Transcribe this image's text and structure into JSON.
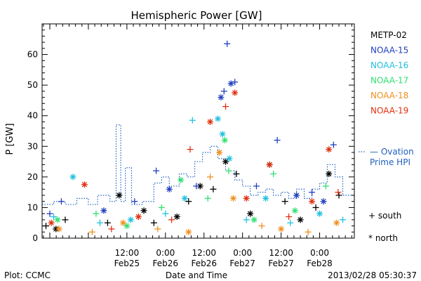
{
  "chart_data": {
    "type": "scatter",
    "title": "Hemispheric Power [GW]",
    "ylabel": "P [GW]",
    "xlabel": "Date and Time",
    "ylim": [
      0,
      70
    ],
    "yticks": [
      0,
      10,
      20,
      30,
      40,
      50,
      60
    ],
    "xlim": [
      -0.6,
      3.45
    ],
    "xticks": [
      {
        "x": 0.5,
        "time": "12:00",
        "date": "Feb25"
      },
      {
        "x": 1.0,
        "time": "0:00",
        "date": "Feb26"
      },
      {
        "x": 1.5,
        "time": "12:00",
        "date": "Feb26"
      },
      {
        "x": 2.0,
        "time": "0:00",
        "date": "Feb27"
      },
      {
        "x": 2.5,
        "time": "12:00",
        "date": "Feb27"
      },
      {
        "x": 3.0,
        "time": "0:00",
        "date": "Feb28"
      }
    ],
    "x_unit": "days from 2013-02-25 00:00 UT",
    "legend_placement": "right",
    "marker_legend": {
      "south": "+ south",
      "north": "* north"
    },
    "series": [
      {
        "name": "METP-02",
        "color": "#000000",
        "points": [
          {
            "x": -0.55,
            "y": 4,
            "m": "+"
          },
          {
            "x": -0.42,
            "y": 3,
            "m": "*"
          },
          {
            "x": -0.3,
            "y": 6,
            "m": "+"
          },
          {
            "x": 0.4,
            "y": 14,
            "m": "*"
          },
          {
            "x": 0.25,
            "y": 5,
            "m": "+"
          },
          {
            "x": 0.72,
            "y": 9,
            "m": "*"
          },
          {
            "x": 0.85,
            "y": 5,
            "m": "+"
          },
          {
            "x": 1.15,
            "y": 7,
            "m": "*"
          },
          {
            "x": 1.3,
            "y": 12,
            "m": "+"
          },
          {
            "x": 1.45,
            "y": 17,
            "m": "*"
          },
          {
            "x": 1.62,
            "y": 16,
            "m": "+"
          },
          {
            "x": 1.78,
            "y": 25,
            "m": "*"
          },
          {
            "x": 1.92,
            "y": 21,
            "m": "+"
          },
          {
            "x": 2.1,
            "y": 8,
            "m": "*"
          },
          {
            "x": 2.35,
            "y": 24,
            "m": "*"
          },
          {
            "x": 2.55,
            "y": 12,
            "m": "+"
          },
          {
            "x": 2.75,
            "y": 6,
            "m": "*"
          },
          {
            "x": 2.95,
            "y": 10,
            "m": "+"
          },
          {
            "x": 3.12,
            "y": 21,
            "m": "*"
          },
          {
            "x": 3.25,
            "y": 14,
            "m": "+"
          }
        ]
      },
      {
        "name": "NOAA-15",
        "color": "#1f3fbf",
        "points": [
          {
            "x": -0.5,
            "y": 8,
            "m": "+"
          },
          {
            "x": -0.35,
            "y": 12,
            "m": "+"
          },
          {
            "x": 0.2,
            "y": 9,
            "m": "*"
          },
          {
            "x": 0.6,
            "y": 12,
            "m": "+"
          },
          {
            "x": 0.88,
            "y": 22,
            "m": "+"
          },
          {
            "x": 1.05,
            "y": 16,
            "m": "*"
          },
          {
            "x": 1.4,
            "y": 17,
            "m": "+"
          },
          {
            "x": 1.72,
            "y": 46,
            "m": "*"
          },
          {
            "x": 1.76,
            "y": 48,
            "m": "+"
          },
          {
            "x": 1.8,
            "y": 63.5,
            "m": "+"
          },
          {
            "x": 1.85,
            "y": 50.5,
            "m": "*"
          },
          {
            "x": 1.9,
            "y": 51,
            "m": "+"
          },
          {
            "x": 2.18,
            "y": 17,
            "m": "+"
          },
          {
            "x": 2.45,
            "y": 32,
            "m": "+"
          },
          {
            "x": 2.7,
            "y": 14,
            "m": "*"
          },
          {
            "x": 2.9,
            "y": 15,
            "m": "+"
          },
          {
            "x": 3.05,
            "y": 12,
            "m": "*"
          },
          {
            "x": 3.18,
            "y": 30.5,
            "m": "+"
          }
        ]
      },
      {
        "name": "NOAA-16",
        "color": "#20c0e0",
        "points": [
          {
            "x": -0.45,
            "y": 7,
            "m": "+"
          },
          {
            "x": -0.2,
            "y": 20,
            "m": "*"
          },
          {
            "x": 0.15,
            "y": 5,
            "m": "+"
          },
          {
            "x": 0.55,
            "y": 6,
            "m": "*"
          },
          {
            "x": 1.0,
            "y": 8,
            "m": "+"
          },
          {
            "x": 1.25,
            "y": 13,
            "m": "*"
          },
          {
            "x": 1.35,
            "y": 38.5,
            "m": "+"
          },
          {
            "x": 1.68,
            "y": 39,
            "m": "*"
          },
          {
            "x": 1.74,
            "y": 34,
            "m": "*"
          },
          {
            "x": 1.83,
            "y": 26,
            "m": "*"
          },
          {
            "x": 2.05,
            "y": 6,
            "m": "+"
          },
          {
            "x": 2.3,
            "y": 13,
            "m": "*"
          },
          {
            "x": 2.62,
            "y": 5,
            "m": "+"
          },
          {
            "x": 3.0,
            "y": 8,
            "m": "*"
          },
          {
            "x": 3.3,
            "y": 6,
            "m": "+"
          }
        ]
      },
      {
        "name": "NOAA-17",
        "color": "#30e070",
        "points": [
          {
            "x": -0.4,
            "y": 6,
            "m": "*"
          },
          {
            "x": 0.1,
            "y": 8,
            "m": "+"
          },
          {
            "x": 0.5,
            "y": 4,
            "m": "*"
          },
          {
            "x": 0.95,
            "y": 10,
            "m": "+"
          },
          {
            "x": 1.2,
            "y": 19,
            "m": "*"
          },
          {
            "x": 1.55,
            "y": 13,
            "m": "+"
          },
          {
            "x": 1.77,
            "y": 32,
            "m": "*"
          },
          {
            "x": 1.82,
            "y": 22,
            "m": "+"
          },
          {
            "x": 2.15,
            "y": 6,
            "m": "*"
          },
          {
            "x": 2.4,
            "y": 21,
            "m": "+"
          },
          {
            "x": 2.68,
            "y": 9,
            "m": "*"
          },
          {
            "x": 3.08,
            "y": 17,
            "m": "+"
          }
        ]
      },
      {
        "name": "NOAA-18",
        "color": "#f09020",
        "points": [
          {
            "x": -0.38,
            "y": 3,
            "m": "*"
          },
          {
            "x": 0.05,
            "y": 2,
            "m": "+"
          },
          {
            "x": 0.45,
            "y": 5,
            "m": "*"
          },
          {
            "x": 0.9,
            "y": 3,
            "m": "+"
          },
          {
            "x": 1.3,
            "y": 2,
            "m": "*"
          },
          {
            "x": 1.58,
            "y": 20,
            "m": "+"
          },
          {
            "x": 1.7,
            "y": 28,
            "m": "*"
          },
          {
            "x": 1.88,
            "y": 13,
            "m": "*"
          },
          {
            "x": 2.25,
            "y": 4,
            "m": "+"
          },
          {
            "x": 2.5,
            "y": 3,
            "m": "*"
          },
          {
            "x": 2.85,
            "y": 2,
            "m": "+"
          },
          {
            "x": 3.22,
            "y": 5,
            "m": "*"
          }
        ]
      },
      {
        "name": "NOAA-19",
        "color": "#e03010",
        "points": [
          {
            "x": -0.48,
            "y": 5,
            "m": "*"
          },
          {
            "x": -0.05,
            "y": 17.5,
            "m": "*"
          },
          {
            "x": 0.3,
            "y": 3,
            "m": "+"
          },
          {
            "x": 0.65,
            "y": 7,
            "m": "*"
          },
          {
            "x": 1.08,
            "y": 6,
            "m": "+"
          },
          {
            "x": 1.32,
            "y": 29,
            "m": "+"
          },
          {
            "x": 1.58,
            "y": 38,
            "m": "*"
          },
          {
            "x": 1.78,
            "y": 43,
            "m": "+"
          },
          {
            "x": 1.9,
            "y": 47.5,
            "m": "*"
          },
          {
            "x": 2.05,
            "y": 13,
            "m": "*"
          },
          {
            "x": 2.35,
            "y": 24,
            "m": "*"
          },
          {
            "x": 2.6,
            "y": 7,
            "m": "+"
          },
          {
            "x": 2.9,
            "y": 12,
            "m": "*"
          },
          {
            "x": 3.12,
            "y": 29,
            "m": "*"
          },
          {
            "x": 3.24,
            "y": 15,
            "m": "+"
          }
        ]
      }
    ],
    "model": {
      "name": "— Ovation Prime HPI",
      "label_lines": [
        "— Ovation",
        "Prime HPI"
      ],
      "color": "#2060c0",
      "style": "dotted-step",
      "points": [
        {
          "x": -0.6,
          "y": 11
        },
        {
          "x": -0.45,
          "y": 12
        },
        {
          "x": -0.3,
          "y": 11
        },
        {
          "x": -0.15,
          "y": 13
        },
        {
          "x": 0.0,
          "y": 11
        },
        {
          "x": 0.12,
          "y": 14
        },
        {
          "x": 0.28,
          "y": 12
        },
        {
          "x": 0.36,
          "y": 37
        },
        {
          "x": 0.42,
          "y": 12
        },
        {
          "x": 0.48,
          "y": 23
        },
        {
          "x": 0.56,
          "y": 11
        },
        {
          "x": 0.7,
          "y": 12
        },
        {
          "x": 0.85,
          "y": 18
        },
        {
          "x": 0.95,
          "y": 20
        },
        {
          "x": 1.05,
          "y": 17
        },
        {
          "x": 1.18,
          "y": 21
        },
        {
          "x": 1.28,
          "y": 20
        },
        {
          "x": 1.38,
          "y": 25
        },
        {
          "x": 1.48,
          "y": 28
        },
        {
          "x": 1.58,
          "y": 30
        },
        {
          "x": 1.68,
          "y": 26
        },
        {
          "x": 1.78,
          "y": 22
        },
        {
          "x": 1.9,
          "y": 19
        },
        {
          "x": 2.0,
          "y": 17
        },
        {
          "x": 2.1,
          "y": 14
        },
        {
          "x": 2.2,
          "y": 15
        },
        {
          "x": 2.3,
          "y": 16
        },
        {
          "x": 2.4,
          "y": 14
        },
        {
          "x": 2.5,
          "y": 15
        },
        {
          "x": 2.6,
          "y": 13
        },
        {
          "x": 2.7,
          "y": 16
        },
        {
          "x": 2.8,
          "y": 13
        },
        {
          "x": 2.9,
          "y": 16
        },
        {
          "x": 3.0,
          "y": 18
        },
        {
          "x": 3.1,
          "y": 24
        },
        {
          "x": 3.2,
          "y": 20
        },
        {
          "x": 3.3,
          "y": 14
        },
        {
          "x": 3.45,
          "y": 12
        }
      ]
    }
  },
  "footer": {
    "left": "Plot: CCMC",
    "right": "2013/02/28 05:30:37"
  }
}
